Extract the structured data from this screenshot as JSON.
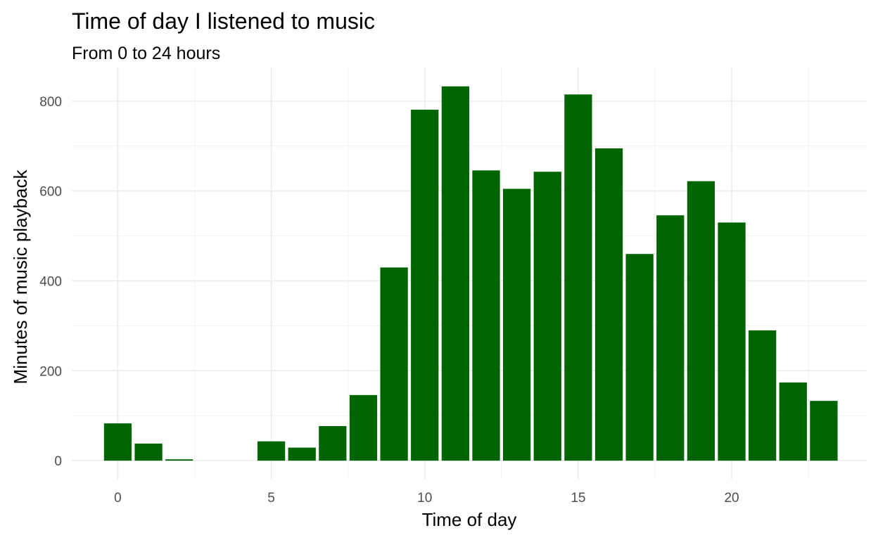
{
  "chart_data": {
    "type": "bar",
    "title": "Time of day I listened to music",
    "subtitle": "From 0 to 24 hours",
    "xlabel": "Time of day",
    "ylabel": "Minutes of music playback",
    "x": [
      0,
      1,
      2,
      3,
      4,
      5,
      6,
      7,
      8,
      9,
      10,
      11,
      12,
      13,
      14,
      15,
      16,
      17,
      18,
      19,
      20,
      21,
      22,
      23
    ],
    "values": [
      83,
      38,
      3,
      0,
      0,
      43,
      29,
      77,
      146,
      430,
      781,
      833,
      646,
      605,
      643,
      815,
      695,
      460,
      546,
      622,
      530,
      290,
      174,
      133
    ],
    "xticks": [
      "0",
      "5",
      "10",
      "15",
      "20"
    ],
    "yticks": [
      "0",
      "200",
      "400",
      "600",
      "800"
    ],
    "xlim": [
      -1.5,
      24.4
    ],
    "ylim": [
      -42,
      875
    ],
    "bar_color": "#006400",
    "grid": true
  }
}
